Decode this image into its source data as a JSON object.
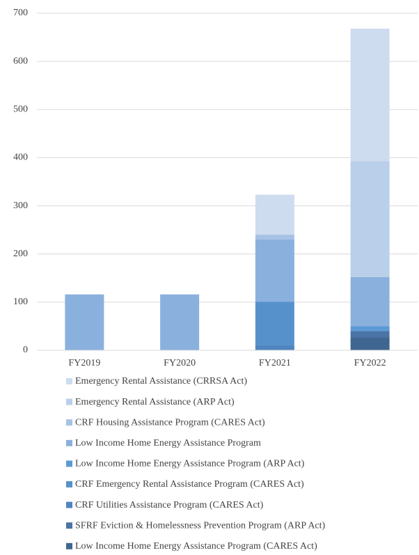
{
  "chart_data": {
    "type": "stacked_bar",
    "categories": [
      "FY2019",
      "FY2020",
      "FY2021",
      "FY2022"
    ],
    "ylim": [
      0,
      700
    ],
    "yticks": [
      0,
      100,
      200,
      300,
      400,
      500,
      600,
      700
    ],
    "grid": true,
    "series": [
      {
        "name": "Emergency Rental Assistance (CRRSA Act)",
        "color": "#cddcef",
        "values": [
          0,
          0,
          83,
          275
        ]
      },
      {
        "name": "Emergency Rental Assistance (ARP Act)",
        "color": "#b9cfea",
        "values": [
          0,
          0,
          0,
          241
        ]
      },
      {
        "name": "CRF Housing Assistance Program (CARES Act)",
        "color": "#a6c2e6",
        "values": [
          0,
          0,
          10,
          0
        ]
      },
      {
        "name": "Low Income Home Energy Assistance Program",
        "color": "#8ab0de",
        "values": [
          116,
          116,
          129,
          102
        ]
      },
      {
        "name": "Low Income Home Energy Assistance Program (ARP Act)",
        "color": "#5b9bd5",
        "values": [
          0,
          0,
          0,
          10
        ]
      },
      {
        "name": "CRF Emergency Rental Assistance Program (CARES Act)",
        "color": "#5691cb",
        "values": [
          0,
          0,
          90,
          0
        ]
      },
      {
        "name": "CRF Utilities Assistance Program (CARES Act)",
        "color": "#4f85c0",
        "values": [
          0,
          0,
          11,
          0
        ]
      },
      {
        "name": "SFRF Eviction & Homelessness Prevention Program (ARP Act)",
        "color": "#4a74a5",
        "values": [
          0,
          0,
          0,
          14
        ]
      },
      {
        "name": "Low Income Home Energy Assistance Program (CARES Act)",
        "color": "#3f6690",
        "values": [
          0,
          0,
          0,
          26
        ]
      }
    ]
  }
}
